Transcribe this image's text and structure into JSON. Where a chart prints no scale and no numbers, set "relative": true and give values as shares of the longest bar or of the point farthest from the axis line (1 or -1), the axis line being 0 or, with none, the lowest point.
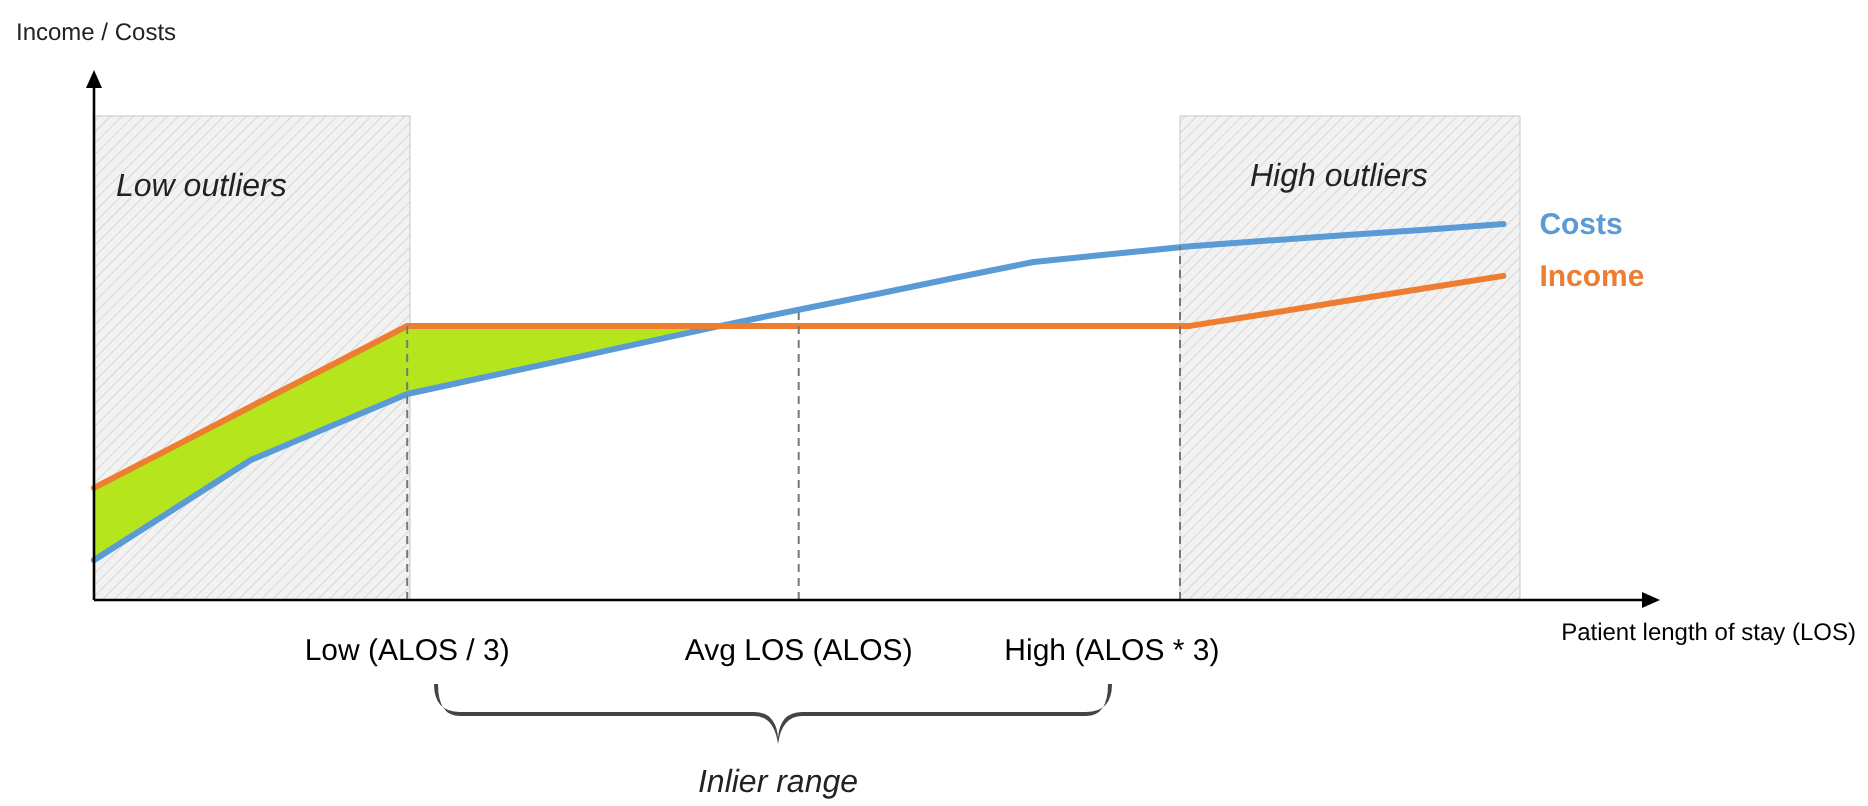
{
  "chart_data": {
    "type": "line",
    "relative": true,
    "xlabel": "Patient length of stay (LOS)",
    "categories": [
      null,
      null,
      null,
      null,
      "Low (ALOS / 3)",
      null,
      null,
      null,
      null,
      "Avg LOS (ALOS)",
      null,
      null,
      null,
      "High (ALOS * 3)",
      null,
      null,
      null,
      null,
      null,
      null,
      null
    ],
    "series": [
      {
        "type": "area",
        "color": "#b5e61d",
        "values": [
          0.298,
          0.406,
          0.514,
          0.621,
          0.729,
          0.729,
          0.729,
          0.729,
          0.729,
          null,
          null,
          null,
          null,
          null,
          null,
          null,
          null,
          null,
          null,
          null,
          null
        ]
      },
      {
        "name": "Costs",
        "color": "#5b9bd5",
        "values": [
          0.106,
          0.239,
          0.372,
          0.46,
          0.548,
          0.593,
          0.638,
          0.684,
          0.729,
          0.772,
          0.814,
          0.857,
          0.899,
          0.92,
          0.941,
          0.956,
          0.971,
          0.985,
          1,
          null,
          null
        ]
      },
      {
        "name": "Income",
        "color": "#ed7d31",
        "values": [
          0.298,
          0.406,
          0.514,
          0.621,
          0.729,
          0.729,
          0.729,
          0.729,
          0.729,
          0.729,
          0.729,
          0.729,
          0.729,
          0.729,
          0.729,
          0.762,
          0.796,
          0.829,
          0.862,
          null,
          null
        ]
      }
    ],
    "ref_lines": [
      {
        "axis": "x",
        "value": "Low (ALOS / 3)",
        "line_style": "dashed"
      },
      {
        "axis": "x",
        "value": "Avg LOS (ALOS)",
        "line_style": "dashed"
      }
    ],
    "annotations": [
      "Income / Costs",
      "Low outliers",
      "High outliers",
      "Inlier range"
    ],
    "line_style": "solid",
    "marker": "none"
  }
}
